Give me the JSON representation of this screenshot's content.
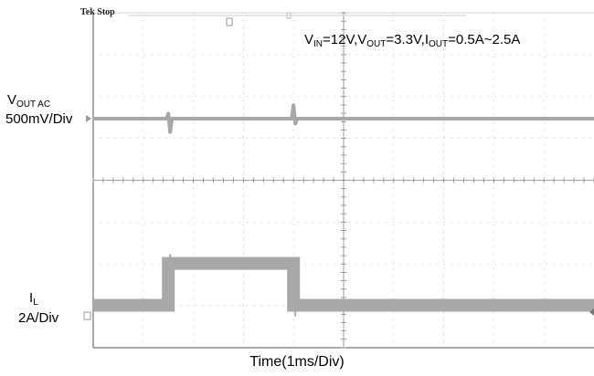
{
  "header": {
    "status": "Tek Stop",
    "conditions": {
      "vin_label": "V",
      "vin_sub": "IN",
      "vin_value": "=12V,",
      "vout_label": "V",
      "vout_sub": "OUT",
      "vout_value": "=3.3V,",
      "iout_label": "I",
      "iout_sub": "OUT",
      "iout_value": "=0.5A~2.5A"
    }
  },
  "channels": {
    "ch1": {
      "name": "V",
      "sub": "OUT AC",
      "scale": "500mV/Div"
    },
    "ch2": {
      "name": "I",
      "sub": "L",
      "scale": "2A/Div"
    }
  },
  "chart_data": {
    "type": "line",
    "xlabel": "Time(1ms/Div)",
    "x_divisions": 10,
    "y_divisions": 8,
    "grid": true,
    "background": "#ffffff",
    "trace_color": "#a8a8a8",
    "grid_color": "#b0b0b0",
    "series": [
      {
        "name": "VOUT AC",
        "unit": "V",
        "baseline": 0,
        "spikes": [
          {
            "t_ms": 1.5,
            "dip_V": -0.16,
            "peak_V": 0.06
          },
          {
            "t_ms": 4.0,
            "peak_V": 0.16,
            "dip_V": -0.06
          }
        ]
      },
      {
        "name": "IL",
        "unit": "A",
        "points": [
          {
            "t_ms": 0.0,
            "I": 0.5
          },
          {
            "t_ms": 1.5,
            "I": 0.5
          },
          {
            "t_ms": 1.5,
            "I": 2.5
          },
          {
            "t_ms": 4.0,
            "I": 2.5
          },
          {
            "t_ms": 4.0,
            "I": 0.5
          },
          {
            "t_ms": 5.5,
            "I": 0.5
          }
        ]
      }
    ]
  }
}
